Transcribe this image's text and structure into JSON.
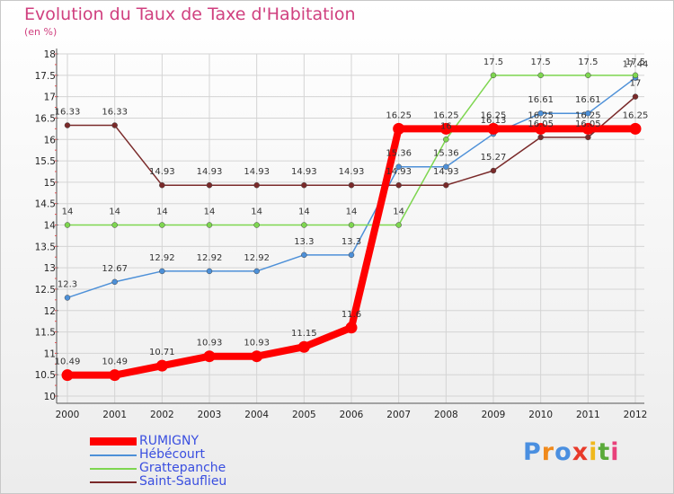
{
  "title": "Evolution du Taux de Taxe d'Habitation",
  "unit": "(en %)",
  "logo": {
    "text": "Proxiti",
    "colors": [
      "#4a8fe0",
      "#f08a1c",
      "#4a8fe0",
      "#e83a2a",
      "#f0b81c",
      "#5aaa3a",
      "#e8407a"
    ]
  },
  "chart_data": {
    "type": "line",
    "x": [
      "2000",
      "2001",
      "2002",
      "2003",
      "2004",
      "2005",
      "2006",
      "2007",
      "2008",
      "2009",
      "2010",
      "2011",
      "2012"
    ],
    "ylim": [
      10,
      18
    ],
    "yticks": [
      "10",
      "10.5",
      "11",
      "11.5",
      "12",
      "12.5",
      "13",
      "13.5",
      "14",
      "14.5",
      "15",
      "15.5",
      "16",
      "16.5",
      "17",
      "17.5",
      "18"
    ],
    "grid": true,
    "legend_position": "bottom-left",
    "series": [
      {
        "name": "RUMIGNY",
        "color": "#ff0000",
        "width": 8,
        "values": [
          10.49,
          10.49,
          10.71,
          10.93,
          10.93,
          11.15,
          11.6,
          16.25,
          16.25,
          16.25,
          16.25,
          16.25,
          16.25
        ],
        "labels": [
          "10.49",
          "10.49",
          "10.71",
          "10.93",
          "10.93",
          "11.15",
          "11.6",
          "16.25",
          "16.25",
          "16.25",
          "16.25",
          "16.25",
          "16.25"
        ]
      },
      {
        "name": "Hébécourt",
        "color": "#4d90d8",
        "width": 1.5,
        "values": [
          12.3,
          12.67,
          12.92,
          12.92,
          12.92,
          13.3,
          13.3,
          15.36,
          15.36,
          16.13,
          16.61,
          16.61,
          17.44
        ],
        "labels": [
          "12.3",
          "12.67",
          "12.92",
          "12.92",
          "12.92",
          "13.3",
          "13.3",
          "15.36",
          "15.36",
          "16.13",
          "16.61",
          "16.61",
          "17.44"
        ]
      },
      {
        "name": "Grattepanche",
        "color": "#7ed650",
        "width": 1.5,
        "values": [
          14,
          14,
          14,
          14,
          14,
          14,
          14,
          14,
          16,
          17.5,
          17.5,
          17.5,
          17.5
        ],
        "labels": [
          "14",
          "14",
          "14",
          "14",
          "14",
          "14",
          "14",
          "14",
          "16",
          "17.5",
          "17.5",
          "17.5",
          "17.5"
        ]
      },
      {
        "name": "Saint-Sauflieu",
        "color": "#7a2a2a",
        "width": 1.5,
        "values": [
          16.33,
          16.33,
          14.93,
          14.93,
          14.93,
          14.93,
          14.93,
          14.93,
          14.93,
          15.27,
          16.05,
          16.05,
          17
        ],
        "labels": [
          "16.33",
          "16.33",
          "14.93",
          "14.93",
          "14.93",
          "14.93",
          "14.93",
          "14.93",
          "14.93",
          "15.27",
          "16.05",
          "16.05",
          "17"
        ]
      }
    ]
  }
}
